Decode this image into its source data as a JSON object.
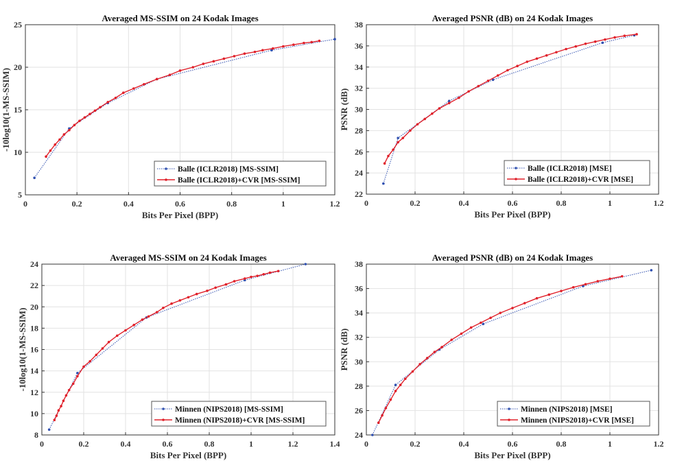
{
  "chart_data": [
    {
      "type": "line",
      "title": "Averaged MS-SSIM on 24 Kodak Images",
      "xlabel": "Bits Per Pixel (BPP)",
      "ylabel": "-10log10(1-MS-SSIM)",
      "xlim": [
        0,
        1.2
      ],
      "ylim": [
        5,
        25
      ],
      "xticks": [
        "0",
        "0.2",
        "0.4",
        "0.6",
        "0.8",
        "1",
        "1.2"
      ],
      "yticks": [
        "5",
        "10",
        "15",
        "20",
        "25"
      ],
      "grid": true,
      "legend_position": "bottom-right",
      "series": [
        {
          "name": "Balle (ICLR2018) [MS-SSIM]",
          "color": "#3050b0",
          "style": "dotted",
          "x": [
            0.035,
            0.17,
            0.32,
            0.51,
            0.955,
            1.2
          ],
          "y": [
            7.0,
            12.8,
            15.8,
            18.6,
            22.0,
            23.3
          ]
        },
        {
          "name": "Balle (ICLR2018)+CVR [MS-SSIM]",
          "color": "#e0202a",
          "style": "solid",
          "x": [
            0.08,
            0.097,
            0.115,
            0.133,
            0.15,
            0.17,
            0.19,
            0.21,
            0.23,
            0.25,
            0.27,
            0.29,
            0.32,
            0.35,
            0.38,
            0.42,
            0.46,
            0.51,
            0.56,
            0.6,
            0.65,
            0.69,
            0.73,
            0.77,
            0.81,
            0.85,
            0.89,
            0.92,
            0.96,
            1.0,
            1.04,
            1.08,
            1.11,
            1.14
          ],
          "y": [
            9.5,
            10.2,
            10.9,
            11.5,
            12.1,
            12.6,
            13.2,
            13.7,
            14.1,
            14.5,
            14.9,
            15.3,
            15.9,
            16.4,
            17.0,
            17.5,
            18.0,
            18.6,
            19.1,
            19.6,
            20.0,
            20.4,
            20.7,
            21.0,
            21.3,
            21.6,
            21.8,
            22.0,
            22.2,
            22.45,
            22.65,
            22.85,
            22.95,
            23.1
          ]
        }
      ]
    },
    {
      "type": "line",
      "title": "Averaged PSNR (dB) on 24 Kodak Images",
      "xlabel": "Bits Per Pixel (BPP)",
      "ylabel": "PSNR (dB)",
      "xlim": [
        0,
        1.2
      ],
      "ylim": [
        22,
        38
      ],
      "xticks": [
        "0",
        "0.2",
        "0.4",
        "0.6",
        "0.8",
        "1",
        "1.2"
      ],
      "yticks": [
        "22",
        "24",
        "26",
        "28",
        "30",
        "32",
        "34",
        "36",
        "38"
      ],
      "grid": true,
      "legend_position": "bottom-right",
      "series": [
        {
          "name": "Balle (ICLR2018) [MSE]",
          "color": "#3050b0",
          "style": "dotted",
          "x": [
            0.07,
            0.13,
            0.34,
            0.52,
            0.97,
            1.1
          ],
          "y": [
            23.0,
            27.3,
            30.8,
            32.8,
            36.3,
            37.0
          ]
        },
        {
          "name": "Balle (ICLR2018)+CVR [MSE]",
          "color": "#e0202a",
          "style": "solid",
          "x": [
            0.075,
            0.09,
            0.11,
            0.13,
            0.15,
            0.18,
            0.21,
            0.24,
            0.27,
            0.3,
            0.34,
            0.38,
            0.42,
            0.46,
            0.5,
            0.54,
            0.58,
            0.62,
            0.66,
            0.7,
            0.74,
            0.78,
            0.82,
            0.86,
            0.9,
            0.94,
            0.98,
            1.02,
            1.06,
            1.11
          ],
          "y": [
            24.9,
            25.6,
            26.2,
            26.9,
            27.3,
            28.0,
            28.6,
            29.1,
            29.6,
            30.1,
            30.6,
            31.1,
            31.7,
            32.2,
            32.7,
            33.2,
            33.7,
            34.1,
            34.5,
            34.8,
            35.1,
            35.4,
            35.7,
            35.95,
            36.2,
            36.4,
            36.6,
            36.8,
            36.95,
            37.1
          ]
        }
      ]
    },
    {
      "type": "line",
      "title": "Averaged MS-SSIM on 24 Kodak Images",
      "xlabel": "Bits Per Pixel (BPP)",
      "ylabel": "-10log10(1-MS-SSIM)",
      "xlim": [
        0,
        1.4
      ],
      "ylim": [
        8,
        24
      ],
      "xticks": [
        "0",
        "0.2",
        "0.4",
        "0.6",
        "0.8",
        "1",
        "1.2",
        "1.4"
      ],
      "yticks": [
        "8",
        "10",
        "12",
        "14",
        "16",
        "18",
        "20",
        "22",
        "24"
      ],
      "grid": true,
      "legend_position": "bottom-right",
      "series": [
        {
          "name": "Minnen (NIPS2018) [MS-SSIM]",
          "color": "#3050b0",
          "style": "dotted",
          "x": [
            0.035,
            0.17,
            0.5,
            0.97,
            1.26
          ],
          "y": [
            8.5,
            13.8,
            19.0,
            22.5,
            24.0
          ]
        },
        {
          "name": "Minnen (NIPS2018)+CVR [MS-SSIM]",
          "color": "#e0202a",
          "style": "solid",
          "x": [
            0.06,
            0.07,
            0.08,
            0.092,
            0.103,
            0.116,
            0.13,
            0.15,
            0.17,
            0.2,
            0.23,
            0.26,
            0.29,
            0.32,
            0.36,
            0.4,
            0.44,
            0.48,
            0.51,
            0.55,
            0.58,
            0.62,
            0.66,
            0.7,
            0.74,
            0.79,
            0.83,
            0.88,
            0.92,
            0.97,
            1.0,
            1.03,
            1.06,
            1.09,
            1.13
          ],
          "y": [
            9.4,
            9.8,
            10.3,
            10.7,
            11.2,
            11.7,
            12.2,
            12.8,
            13.5,
            14.4,
            14.9,
            15.5,
            16.1,
            16.7,
            17.3,
            17.8,
            18.3,
            18.8,
            19.1,
            19.5,
            19.9,
            20.3,
            20.6,
            20.9,
            21.2,
            21.5,
            21.8,
            22.1,
            22.4,
            22.65,
            22.8,
            22.9,
            23.05,
            23.2,
            23.35
          ]
        }
      ]
    },
    {
      "type": "line",
      "title": "Averaged PSNR (dB) on 24 Kodak Images",
      "xlabel": "Bits Per Pixel (BPP)",
      "ylabel": "PSNR (dB)",
      "xlim": [
        0,
        1.2
      ],
      "ylim": [
        24,
        38
      ],
      "xticks": [
        "0",
        "0.2",
        "0.4",
        "0.6",
        "0.8",
        "1",
        "1.2"
      ],
      "yticks": [
        "24",
        "26",
        "28",
        "30",
        "32",
        "34",
        "36",
        "38"
      ],
      "grid": true,
      "legend_position": "bottom-right",
      "series": [
        {
          "name": "Minnen (NIPS2018) [MSE]",
          "color": "#3050b0",
          "style": "dotted",
          "x": [
            0.025,
            0.12,
            0.3,
            0.48,
            0.89,
            1.17
          ],
          "y": [
            24.0,
            28.1,
            31.0,
            33.1,
            36.2,
            37.5
          ]
        },
        {
          "name": "Minnen (NIPS2018)+CVR [MSE]",
          "color": "#e0202a",
          "style": "solid",
          "x": [
            0.05,
            0.065,
            0.08,
            0.1,
            0.12,
            0.14,
            0.16,
            0.19,
            0.22,
            0.25,
            0.28,
            0.31,
            0.35,
            0.39,
            0.43,
            0.47,
            0.51,
            0.55,
            0.6,
            0.65,
            0.7,
            0.75,
            0.8,
            0.85,
            0.9,
            0.95,
            1.0,
            1.05
          ],
          "y": [
            25.0,
            25.6,
            26.2,
            26.9,
            27.6,
            28.1,
            28.6,
            29.2,
            29.8,
            30.3,
            30.8,
            31.2,
            31.8,
            32.3,
            32.8,
            33.2,
            33.6,
            34.0,
            34.4,
            34.8,
            35.2,
            35.5,
            35.8,
            36.1,
            36.35,
            36.6,
            36.8,
            37.0
          ]
        }
      ]
    }
  ]
}
